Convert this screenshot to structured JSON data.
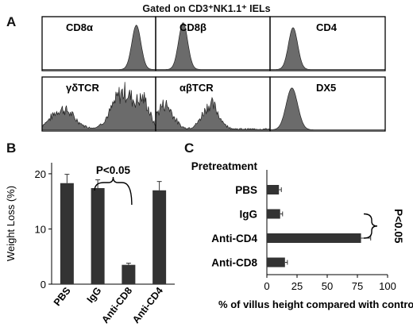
{
  "figure_header": "Gated on CD3⁺NK1.1⁺ IELs",
  "panels": {
    "a": "A",
    "b": "B",
    "c": "C"
  },
  "colors": {
    "fill": "#6b6b6b",
    "bar": "#333333",
    "stroke": "#000000"
  },
  "chart_data": [
    {
      "type": "area",
      "panel": "A",
      "title": "Gated on CD3⁺NK1.1⁺ IELs",
      "grid": false,
      "histograms": [
        {
          "label": "CD8α",
          "row": 0,
          "col": 0,
          "peaks": [
            {
              "center": 0.83,
              "height": 0.9,
              "width": 0.04
            }
          ]
        },
        {
          "label": "CD8β",
          "row": 0,
          "col": 1,
          "peaks": [
            {
              "center": 0.24,
              "height": 0.95,
              "width": 0.04
            }
          ]
        },
        {
          "label": "CD4",
          "row": 0,
          "col": 2,
          "peaks": [
            {
              "center": 0.2,
              "height": 0.85,
              "width": 0.04
            }
          ]
        },
        {
          "label": "γδTCR",
          "row": 1,
          "col": 0,
          "noisy": true,
          "peaks": [
            {
              "center": 0.18,
              "height": 0.4,
              "width": 0.1
            },
            {
              "center": 0.72,
              "height": 0.75,
              "width": 0.1
            },
            {
              "center": 0.9,
              "height": 0.45,
              "width": 0.05
            }
          ]
        },
        {
          "label": "αβTCR",
          "row": 1,
          "col": 1,
          "noisy": true,
          "peaks": [
            {
              "center": 0.08,
              "height": 0.5,
              "width": 0.07
            },
            {
              "center": 0.48,
              "height": 0.5,
              "width": 0.07
            }
          ]
        },
        {
          "label": "DX5",
          "row": 1,
          "col": 2,
          "peaks": [
            {
              "center": 0.19,
              "height": 0.85,
              "width": 0.05
            }
          ]
        }
      ]
    },
    {
      "type": "bar",
      "panel": "B",
      "categories": [
        "PBS",
        "IgG",
        "Anti-CD8",
        "Anti-CD4"
      ],
      "values": [
        18.3,
        17.4,
        3.5,
        17.0
      ],
      "errors": [
        1.6,
        1.5,
        0.3,
        1.6
      ],
      "ylabel": "Weight  Loss (%)",
      "yticks": [
        0,
        10,
        20
      ],
      "ylim": [
        0,
        22
      ],
      "annotation": "P<0.05",
      "grid": false
    },
    {
      "type": "bar",
      "panel": "C",
      "orientation": "horizontal",
      "header_label": "Pretreatment",
      "categories": [
        "PBS",
        "IgG",
        "Anti-CD4",
        "Anti-CD8"
      ],
      "values": [
        10,
        11,
        78,
        15
      ],
      "errors": [
        2,
        2,
        8,
        2
      ],
      "xlabel": "% of villus height compared with control",
      "xticks": [
        0,
        25,
        50,
        75,
        100
      ],
      "xlim": [
        0,
        100
      ],
      "annotation": "P<0.05",
      "grid": false
    }
  ]
}
